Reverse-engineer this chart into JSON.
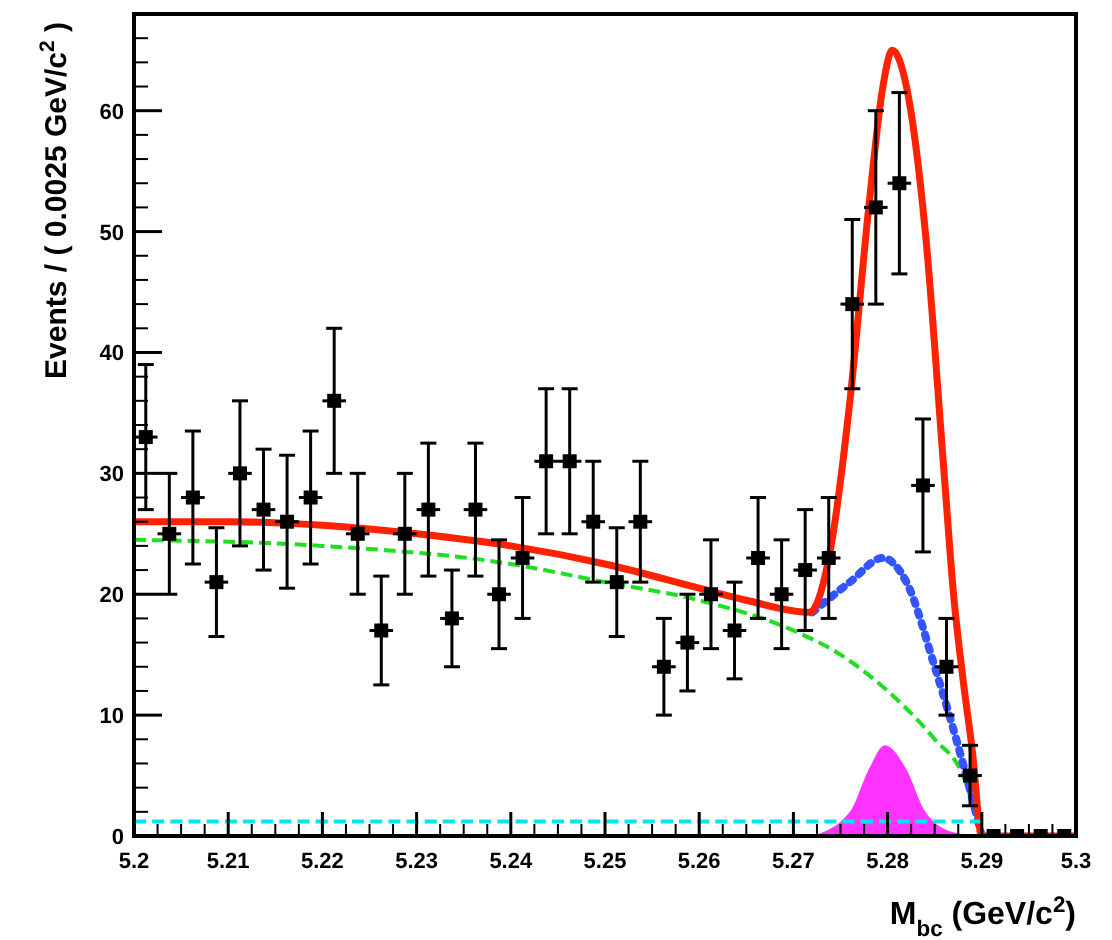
{
  "chart_data": {
    "type": "scatter",
    "xlabel": "M$_{bc}$ (GeV/c$^{2}$)",
    "ylabel": "Events / ( 0.0025 GeV/c$^{2}$ )",
    "xlim": [
      5.2,
      5.3
    ],
    "ylim": [
      0,
      68
    ],
    "xticks": [
      5.2,
      5.21,
      5.22,
      5.23,
      5.24,
      5.25,
      5.26,
      5.27,
      5.28,
      5.29,
      5.3
    ],
    "yticks": [
      0,
      10,
      20,
      30,
      40,
      50,
      60
    ],
    "grid": false,
    "series": [
      {
        "type": "area",
        "color": "#ff33ff",
        "x": [
          5.272,
          5.276,
          5.278,
          5.2797,
          5.282,
          5.284,
          5.287,
          5.29
        ],
        "values": [
          0,
          2,
          5.5,
          7.5,
          5.5,
          2,
          0.3,
          0
        ]
      },
      {
        "type": "line",
        "color": "#22dd22",
        "line_style": "dashed",
        "x": [
          5.2,
          5.22,
          5.24,
          5.25,
          5.26,
          5.27,
          5.275,
          5.28,
          5.285,
          5.288,
          5.29
        ],
        "values": [
          24.5,
          24,
          22.5,
          21,
          19.5,
          17,
          15,
          12,
          8,
          5,
          0
        ]
      },
      {
        "type": "line",
        "color": "#3355ff",
        "line_style": "dotted",
        "x": [
          5.272,
          5.276,
          5.2795,
          5.282,
          5.285,
          5.288,
          5.29
        ],
        "values": [
          18.5,
          21,
          23,
          21,
          14,
          6,
          0
        ]
      },
      {
        "type": "line",
        "color": "#ff2200",
        "line_style": "solid",
        "x": [
          5.2,
          5.21,
          5.22,
          5.23,
          5.24,
          5.25,
          5.26,
          5.265,
          5.2717,
          5.274,
          5.276,
          5.278,
          5.2795,
          5.2805,
          5.282,
          5.284,
          5.286,
          5.287,
          5.288,
          5.289,
          5.29,
          5.3
        ],
        "values": [
          26,
          26,
          25.7,
          25,
          24,
          22.5,
          20.5,
          19.5,
          18.5,
          24,
          36,
          52,
          62,
          65,
          62,
          50,
          30,
          20,
          13,
          7,
          0,
          0
        ]
      },
      {
        "type": "line",
        "color": "#00e5ee",
        "line_style": "dashed",
        "x": [
          5.2,
          5.29
        ],
        "values": [
          1.2,
          1.2
        ]
      },
      {
        "color": "#000000",
        "marker": "square",
        "x": [
          5.20125,
          5.20375,
          5.20625,
          5.20875,
          5.21125,
          5.21375,
          5.21625,
          5.21875,
          5.22125,
          5.22375,
          5.22625,
          5.22875,
          5.23125,
          5.23375,
          5.23625,
          5.23875,
          5.24125,
          5.24375,
          5.24625,
          5.24875,
          5.25125,
          5.25375,
          5.25625,
          5.25875,
          5.26125,
          5.26375,
          5.26625,
          5.26875,
          5.27125,
          5.27375,
          5.27625,
          5.27875,
          5.28125,
          5.28375,
          5.28625,
          5.28875,
          5.29125,
          5.29375,
          5.29625,
          5.29875
        ],
        "values": [
          33,
          25,
          28,
          21,
          30,
          27,
          26,
          28,
          36,
          25,
          17,
          25,
          27,
          18,
          27,
          20,
          23,
          31,
          31,
          26,
          21,
          26,
          14,
          16,
          20,
          17,
          23,
          20,
          22,
          23,
          44,
          52,
          54,
          29,
          14,
          5,
          0,
          0,
          0,
          0
        ],
        "xerrors": [
          0.00125,
          0.00125,
          0.00125,
          0.00125,
          0.00125,
          0.00125,
          0.00125,
          0.00125,
          0.00125,
          0.00125,
          0.00125,
          0.00125,
          0.00125,
          0.00125,
          0.00125,
          0.00125,
          0.00125,
          0.00125,
          0.00125,
          0.00125,
          0.00125,
          0.00125,
          0.00125,
          0.00125,
          0.00125,
          0.00125,
          0.00125,
          0.00125,
          0.00125,
          0.00125,
          0.00125,
          0.00125,
          0.00125,
          0.00125,
          0.00125,
          0.00125,
          0.00125,
          0.00125,
          0.00125,
          0.00125
        ],
        "errors": [
          6,
          5,
          5.5,
          4.5,
          6,
          5,
          5.5,
          5.5,
          6,
          5,
          4.5,
          5,
          5.5,
          4,
          5.5,
          4.5,
          5,
          6,
          6,
          5,
          4.5,
          5,
          4,
          4,
          4.5,
          4,
          5,
          4.5,
          5,
          5,
          7,
          8,
          7.5,
          5.5,
          4,
          2.5,
          null,
          null,
          null,
          null
        ]
      }
    ]
  }
}
